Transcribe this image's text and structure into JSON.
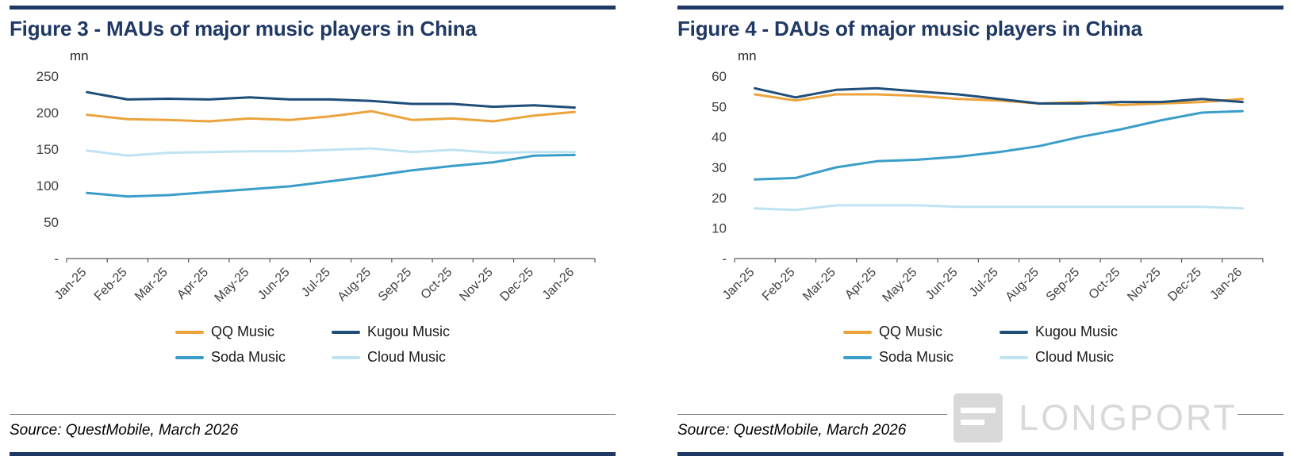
{
  "figures": [
    {
      "source": "Source: QuestMobile, March 2026"
    },
    {
      "source": "Source: QuestMobile, March 2026"
    }
  ],
  "watermark": {
    "text": "LONGPORT"
  },
  "colors": {
    "accent_navy": "#1F3864",
    "qq_music": "#ECA33C",
    "kugou_music": "#1F4E79",
    "soda_music": "#3A9EC9",
    "cloud_music": "#BFE3F2"
  },
  "chart_data": [
    {
      "type": "line",
      "title": "Figure 3 - MAUs of major music players in China",
      "ylabel": "mn",
      "ylim": [
        0,
        250
      ],
      "ytick_step": 50,
      "grid": false,
      "legend_position": "bottom",
      "categories": [
        "Jan-25",
        "Feb-25",
        "Mar-25",
        "Apr-25",
        "May-25",
        "Jun-25",
        "Jul-25",
        "Aug-25",
        "Sep-25",
        "Oct-25",
        "Nov-25",
        "Dec-25",
        "Jan-26"
      ],
      "series": [
        {
          "name": "QQ Music",
          "color": "#ECA33C",
          "values": [
            197,
            191,
            190,
            188,
            192,
            190,
            195,
            202,
            190,
            192,
            188,
            196,
            201
          ]
        },
        {
          "name": "Kugou Music",
          "color": "#1F4E79",
          "values": [
            228,
            218,
            219,
            218,
            221,
            218,
            218,
            216,
            212,
            212,
            208,
            210,
            207
          ]
        },
        {
          "name": "Soda Music",
          "color": "#3A9EC9",
          "values": [
            90,
            85,
            87,
            91,
            95,
            99,
            106,
            113,
            121,
            127,
            132,
            141,
            142
          ]
        },
        {
          "name": "Cloud Music",
          "color": "#BFE3F2",
          "values": [
            148,
            141,
            145,
            146,
            147,
            147,
            149,
            151,
            146,
            149,
            145,
            146,
            146
          ]
        }
      ]
    },
    {
      "type": "line",
      "title": "Figure 4 - DAUs of major music players in China",
      "ylabel": "mn",
      "ylim": [
        0,
        60
      ],
      "ytick_step": 10,
      "grid": false,
      "legend_position": "bottom",
      "categories": [
        "Jan-25",
        "Feb-25",
        "Mar-25",
        "Apr-25",
        "May-25",
        "Jun-25",
        "Jul-25",
        "Aug-25",
        "Sep-25",
        "Oct-25",
        "Nov-25",
        "Dec-25",
        "Jan-26"
      ],
      "series": [
        {
          "name": "QQ Music",
          "color": "#ECA33C",
          "values": [
            54,
            52,
            54,
            54,
            53.5,
            52.5,
            52,
            51,
            51.5,
            50.5,
            51,
            51.5,
            52.5
          ]
        },
        {
          "name": "Kugou Music",
          "color": "#1F4E79",
          "values": [
            56,
            53,
            55.5,
            56,
            55,
            54,
            52.5,
            51,
            51,
            51.5,
            51.5,
            52.5,
            51.5
          ]
        },
        {
          "name": "Soda Music",
          "color": "#3A9EC9",
          "values": [
            26,
            26.5,
            30,
            32,
            32.5,
            33.5,
            35,
            37,
            40,
            42.5,
            45.5,
            48,
            48.5
          ]
        },
        {
          "name": "Cloud Music",
          "color": "#BFE3F2",
          "values": [
            16.5,
            16,
            17.5,
            17.5,
            17.5,
            17,
            17,
            17,
            17,
            17,
            17,
            17,
            16.5
          ]
        }
      ]
    }
  ]
}
